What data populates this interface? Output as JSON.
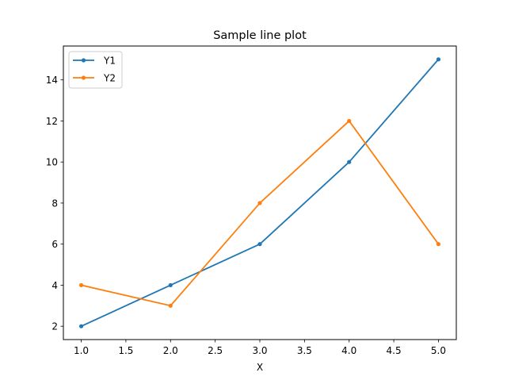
{
  "chart_data": {
    "type": "line",
    "title": "Sample line plot",
    "xlabel": "X",
    "ylabel": "",
    "x": [
      1,
      2,
      3,
      4,
      5
    ],
    "series": [
      {
        "name": "Y1",
        "values": [
          2,
          4,
          6,
          10,
          15
        ],
        "color": "#1f77b4"
      },
      {
        "name": "Y2",
        "values": [
          4,
          3,
          8,
          12,
          6
        ],
        "color": "#ff7f0e"
      }
    ],
    "xlim": [
      0.8,
      5.2
    ],
    "ylim": [
      1.35,
      15.65
    ],
    "xticks": [
      1.0,
      1.5,
      2.0,
      2.5,
      3.0,
      3.5,
      4.0,
      4.5,
      5.0
    ],
    "xtick_labels": [
      "1.0",
      "1.5",
      "2.0",
      "2.5",
      "3.0",
      "3.5",
      "4.0",
      "4.5",
      "5.0"
    ],
    "yticks": [
      2,
      4,
      6,
      8,
      10,
      12,
      14
    ],
    "ytick_labels": [
      "2",
      "4",
      "6",
      "8",
      "10",
      "12",
      "14"
    ],
    "grid": false,
    "legend_position": "top-left",
    "markers": true
  }
}
